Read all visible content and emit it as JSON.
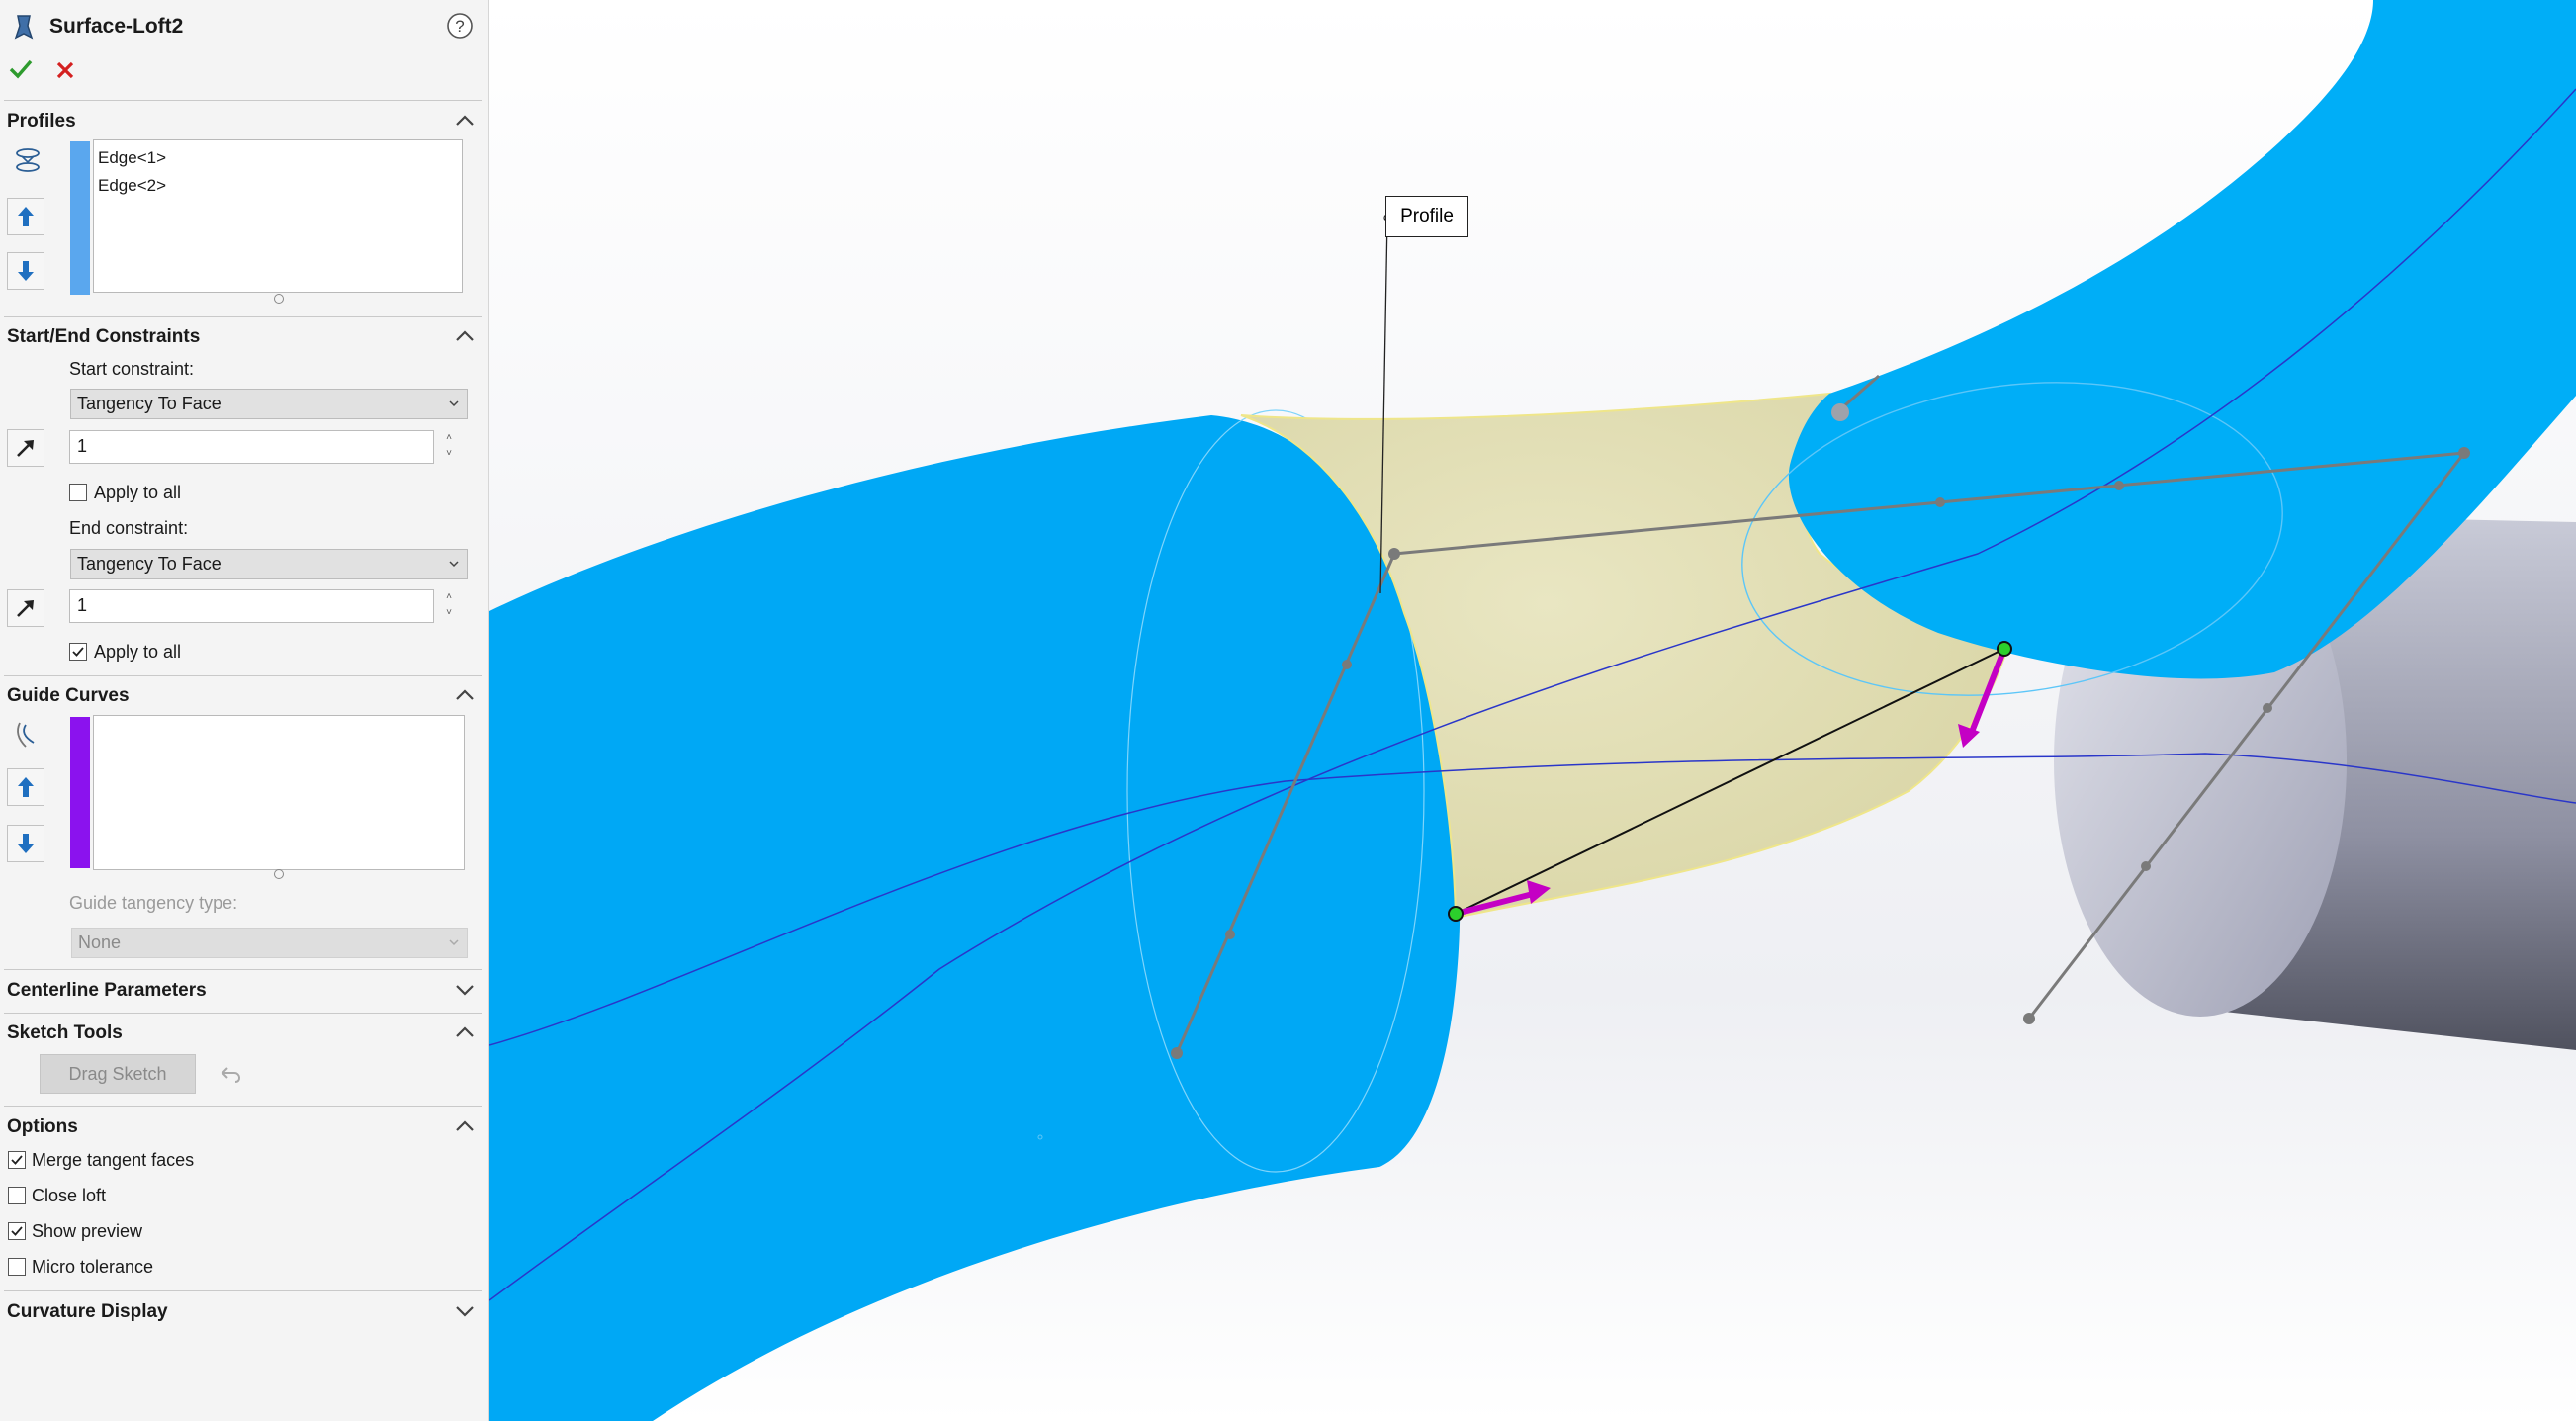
{
  "feature": {
    "title": "Surface-Loft2",
    "help_icon": "help-icon",
    "ok_icon": "check-icon",
    "cancel_icon": "x-icon"
  },
  "profiles": {
    "header": "Profiles",
    "items": [
      "Edge<1>",
      "Edge<2>"
    ],
    "color": "#5aa7ee"
  },
  "constraints": {
    "header": "Start/End Constraints",
    "start_label": "Start constraint:",
    "start_value": "Tangency To Face",
    "start_length": "1",
    "start_apply_all_label": "Apply to all",
    "start_apply_all": false,
    "end_label": "End constraint:",
    "end_value": "Tangency To Face",
    "end_length": "1",
    "end_apply_all_label": "Apply to all",
    "end_apply_all": true
  },
  "guide_curves": {
    "header": "Guide Curves",
    "items": [],
    "color": "#8b12ee",
    "tangency_label": "Guide tangency type:",
    "tangency_value": "None"
  },
  "centerline": {
    "header": "Centerline Parameters"
  },
  "sketch_tools": {
    "header": "Sketch Tools",
    "drag_sketch_label": "Drag Sketch"
  },
  "options": {
    "header": "Options",
    "items": [
      {
        "label": "Merge tangent faces",
        "checked": true
      },
      {
        "label": "Close loft",
        "checked": false
      },
      {
        "label": "Show preview",
        "checked": true
      },
      {
        "label": "Micro tolerance",
        "checked": false
      }
    ]
  },
  "curvature": {
    "header": "Curvature Display"
  },
  "viewport": {
    "callout_label": "Profile",
    "colors": {
      "blue_surface": "#00a9f4",
      "loft_preview": "#e2dfb4",
      "grey_cylinder": "#9a9cb0",
      "connector_arrow": "#c400c4",
      "sketch_line": "#7a7a7a",
      "guide_line": "#2a36c9"
    }
  }
}
